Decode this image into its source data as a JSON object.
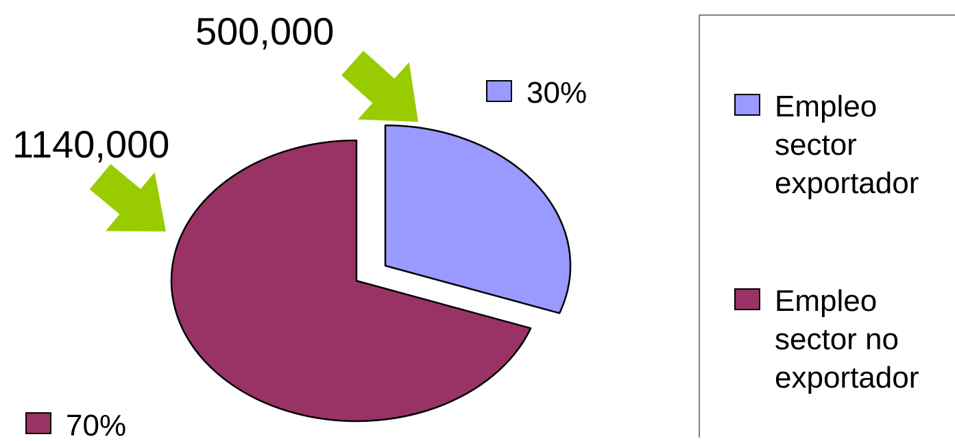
{
  "chart_data": {
    "type": "pie",
    "series": [
      {
        "name": "Empleo sector exportador",
        "value": 500000,
        "value_label": "500,000",
        "percent": 30,
        "percent_label": "30%",
        "color": "#9999FF",
        "exploded": true
      },
      {
        "name": "Empleo sector no exportador",
        "value": 1140000,
        "value_label": "1140,000",
        "percent": 70,
        "percent_label": "70%",
        "color": "#993366",
        "exploded": false
      }
    ],
    "legend": {
      "placement": "right",
      "entries": [
        {
          "lines": [
            "Empleo",
            "sector",
            "exportador"
          ],
          "color": "#9999FF"
        },
        {
          "lines": [
            "Empleo",
            "sector no",
            "exportador"
          ],
          "color": "#993366"
        }
      ]
    },
    "annotations": {
      "arrow_color": "#99CC00"
    }
  }
}
